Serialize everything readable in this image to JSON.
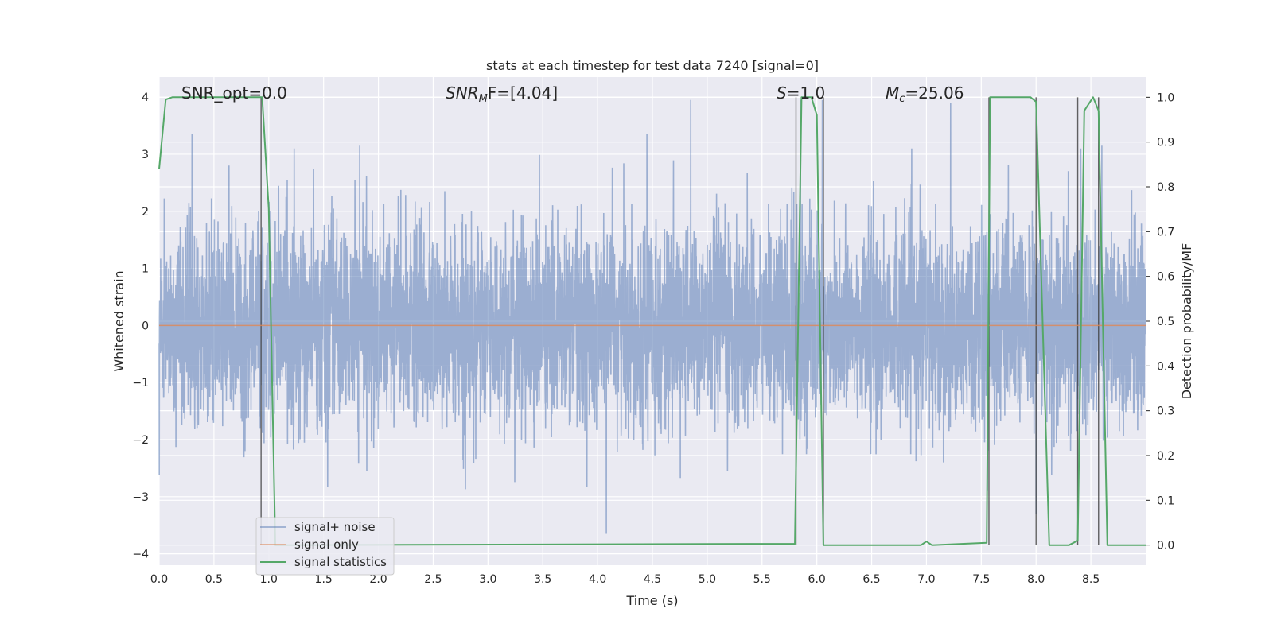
{
  "chart_data": {
    "type": "line",
    "title": "stats at each timestep for test data 7240 [signal=0]",
    "xlabel": "Time (s)",
    "ylabel_left": "Whitened strain",
    "ylabel_right": "Detection probability/MF",
    "xlim": [
      0.0,
      9.0
    ],
    "ylim_left": [
      -4.2,
      4.35
    ],
    "ylim_right": [
      -0.045,
      1.045
    ],
    "x_ticks": [
      "0.0",
      "0.5",
      "1.0",
      "1.5",
      "2.0",
      "2.5",
      "3.0",
      "3.5",
      "4.0",
      "4.5",
      "5.0",
      "5.5",
      "6.0",
      "6.5",
      "7.0",
      "7.5",
      "8.0",
      "8.5"
    ],
    "y_ticks_left": [
      "4",
      "3",
      "2",
      "1",
      "0",
      "−1",
      "−2",
      "−3",
      "−4"
    ],
    "y_ticks_right": [
      "1.0",
      "0.9",
      "0.8",
      "0.7",
      "0.6",
      "0.5",
      "0.4",
      "0.3",
      "0.2",
      "0.1",
      "0.0"
    ],
    "grid": true,
    "annotations": {
      "snr_opt": "SNR_opt=0.0",
      "snr_mf_main": "SNR",
      "snr_mf_sub": "M",
      "snr_mf_rest": "F=[4.04]",
      "s_italic": "S",
      "s_rest": "=1.0",
      "mc_main": "M",
      "mc_sub": "c",
      "mc_rest": "=25.06"
    },
    "legend": {
      "placement": "lower-left",
      "entries": [
        "signal+ noise",
        "signal only",
        "signal statistics"
      ]
    },
    "series": [
      {
        "name": "signal+ noise",
        "axis": "left",
        "color": "#4c72b0",
        "kind": "noise",
        "noise_std": 0.85,
        "t_start": 0.0,
        "t_end": 9.0,
        "spike_peaks": [
          {
            "x": 0.3,
            "y": 3.35
          },
          {
            "x": 1.83,
            "y": 3.15
          },
          {
            "x": 4.08,
            "y": -3.65
          },
          {
            "x": 4.45,
            "y": 3.35
          },
          {
            "x": 4.85,
            "y": 3.95
          },
          {
            "x": 5.85,
            "y": 3.95
          },
          {
            "x": 6.05,
            "y": 3.95
          },
          {
            "x": 7.22,
            "y": 3.9
          },
          {
            "x": 8.0,
            "y": -3.3
          },
          {
            "x": 8.6,
            "y": 3.15
          }
        ]
      },
      {
        "name": "signal only",
        "axis": "left",
        "color": "#dd8452",
        "x": [
          0.0,
          9.0
        ],
        "y": [
          0.0,
          0.0
        ]
      },
      {
        "name": "signal statistics",
        "axis": "right",
        "color": "#55a868",
        "x": [
          0.0,
          0.06,
          0.12,
          0.9,
          0.94,
          1.0,
          1.06,
          1.1,
          5.8,
          5.86,
          5.88,
          5.95,
          6.0,
          6.06,
          6.12,
          6.95,
          7.0,
          7.05,
          7.55,
          7.58,
          7.64,
          7.95,
          8.0,
          8.12,
          8.3,
          8.38,
          8.44,
          8.52,
          8.57,
          8.65,
          8.75,
          9.0
        ],
        "y": [
          0.84,
          0.995,
          1.0,
          1.0,
          1.0,
          0.75,
          0.0,
          0.0,
          0.003,
          1.0,
          1.0,
          1.0,
          0.96,
          0.0,
          0.0,
          0.0,
          0.008,
          0.0,
          0.005,
          1.0,
          1.0,
          1.0,
          0.99,
          0.0,
          0.0,
          0.01,
          0.97,
          1.0,
          0.97,
          0.0,
          0.0,
          0.0
        ]
      }
    ],
    "vertical_lines_x": [
      0.93,
      5.81,
      6.06,
      7.57,
      8.0,
      8.38,
      8.57
    ]
  }
}
